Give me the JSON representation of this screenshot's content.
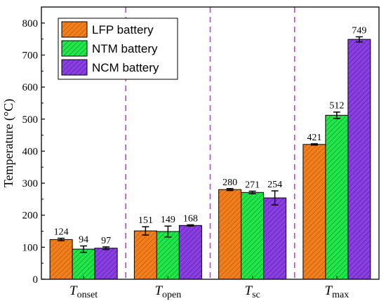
{
  "chart_data": {
    "type": "bar",
    "xlabel": "",
    "ylabel": "Temperature (°C)",
    "ylim": [
      0,
      850
    ],
    "yticks": [
      0,
      100,
      200,
      300,
      400,
      500,
      600,
      700,
      800
    ],
    "grid": false,
    "legend_position": "top-left",
    "categories": [
      {
        "main": "T",
        "sub": "onset"
      },
      {
        "main": "T",
        "sub": "open"
      },
      {
        "main": "T",
        "sub": "sc"
      },
      {
        "main": "T",
        "sub": "max"
      }
    ],
    "series": [
      {
        "name": "LFP battery",
        "values": [
          124,
          151,
          280,
          421
        ],
        "errors": [
          4,
          13,
          3,
          2
        ],
        "labels": [
          "124",
          "151",
          "280",
          "421"
        ],
        "color": "#f07f1f",
        "hatch": "#c55a00"
      },
      {
        "name": "NTM battery",
        "values": [
          94,
          149,
          271,
          512
        ],
        "errors": [
          10,
          17,
          4,
          10
        ],
        "labels": [
          "94",
          "149",
          "271",
          "512"
        ],
        "color": "#22e64a",
        "hatch": "#0da42c"
      },
      {
        "name": "NCM battery",
        "values": [
          97,
          168,
          254,
          749
        ],
        "errors": [
          4,
          2,
          22,
          8
        ],
        "labels": [
          "97",
          "168",
          "254",
          "749"
        ],
        "color": "#8a3fe0",
        "hatch": "#5e1fb0"
      }
    ],
    "separator_color": "#c03ce0"
  }
}
